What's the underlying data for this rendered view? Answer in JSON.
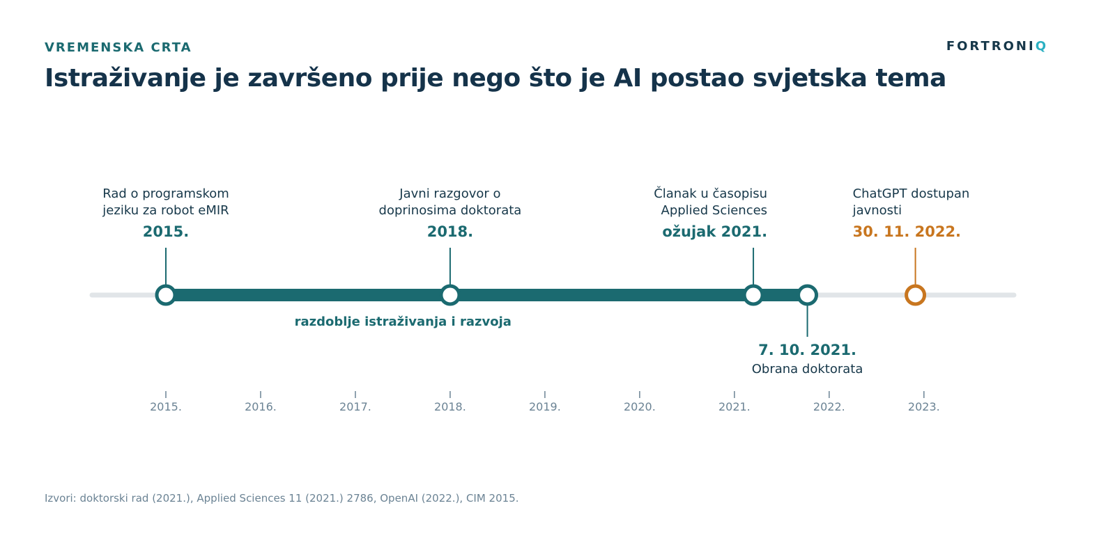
{
  "header": {
    "eyebrow": "VREMENSKA CRTA",
    "brand_main": "FORTRONI",
    "brand_accent": "Q",
    "title": "Istraživanje je završeno prije nego što je AI postao svjetska tema"
  },
  "timeline": {
    "axis_start": 2015.0,
    "axis_end": 2023.95,
    "colors": {
      "track": "#e1e5e8",
      "period": "#1b6a70",
      "text": "#17384a",
      "accent": "#c8761f",
      "tick": "#6b8394"
    },
    "period": {
      "start": 2015.0,
      "end": 2021.77,
      "label": "razdoblje istraživanja i razvoja"
    },
    "events": [
      {
        "id": "emir",
        "t": 2015.0,
        "position": "above",
        "align": "start",
        "lines": [
          "Rad o programskom",
          "jeziku za robot eMIR"
        ],
        "date": "2015.",
        "style": "primary"
      },
      {
        "id": "javni",
        "t": 2018.0,
        "position": "above",
        "align": "middle",
        "lines": [
          "Javni razgovor o",
          "doprinosima doktorata"
        ],
        "date": "2018.",
        "style": "primary"
      },
      {
        "id": "clanak",
        "t": 2021.2,
        "position": "above",
        "align": "end",
        "lines": [
          "Članak u časopisu",
          "Applied Sciences"
        ],
        "date": "ožujak 2021.",
        "style": "primary"
      },
      {
        "id": "obrana",
        "t": 2021.77,
        "position": "below",
        "align": "middle",
        "lines": [
          "Obrana doktorata"
        ],
        "date": "7. 10. 2021.",
        "style": "primary"
      },
      {
        "id": "chatgpt",
        "t": 2022.91,
        "position": "above",
        "align": "start",
        "lines": [
          "ChatGPT dostupan",
          "javnosti"
        ],
        "date": "30. 11. 2022.",
        "style": "accent"
      }
    ],
    "ticks": [
      {
        "t": 2015,
        "label": "2015."
      },
      {
        "t": 2016,
        "label": "2016."
      },
      {
        "t": 2017,
        "label": "2017."
      },
      {
        "t": 2018,
        "label": "2018."
      },
      {
        "t": 2019,
        "label": "2019."
      },
      {
        "t": 2020,
        "label": "2020."
      },
      {
        "t": 2021,
        "label": "2021."
      },
      {
        "t": 2022,
        "label": "2022."
      },
      {
        "t": 2023,
        "label": "2023."
      }
    ]
  },
  "footer": {
    "sources": "Izvori: doktorski rad (2021.), Applied Sciences 11 (2021.) 2786, OpenAI (2022.), CIM 2015."
  }
}
